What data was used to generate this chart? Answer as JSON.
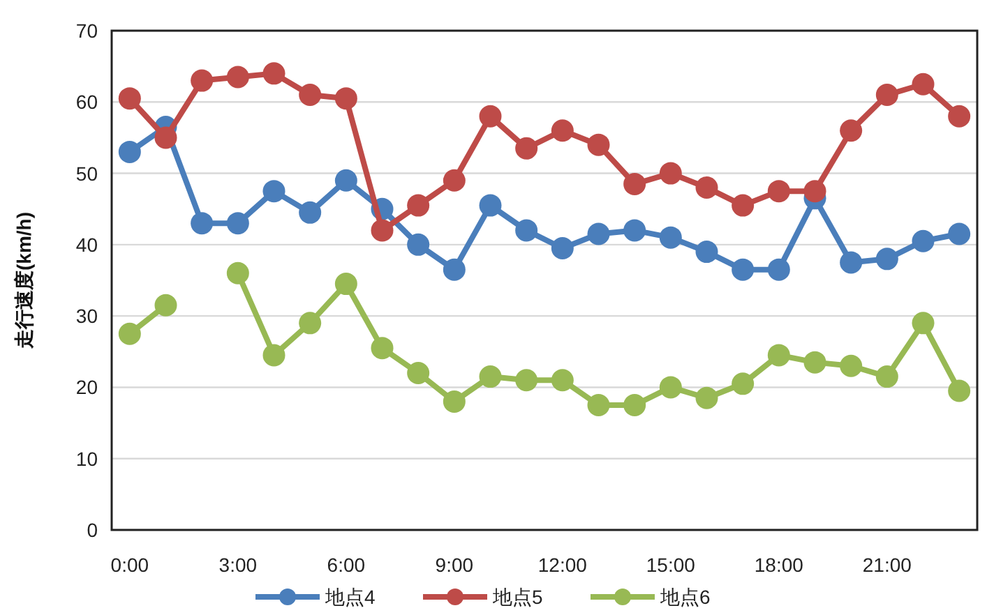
{
  "chart_data": {
    "type": "line",
    "ylabel": "走行速度(km/h)",
    "x": [
      0,
      1,
      2,
      3,
      4,
      5,
      6,
      7,
      8,
      9,
      10,
      11,
      12,
      13,
      14,
      15,
      16,
      17,
      18,
      19,
      20,
      21,
      22,
      23
    ],
    "xlim": [
      -0.5,
      23.5
    ],
    "xticks": [
      {
        "value": 0,
        "label": "0:00"
      },
      {
        "value": 3,
        "label": "3:00"
      },
      {
        "value": 6,
        "label": "6:00"
      },
      {
        "value": 9,
        "label": "9:00"
      },
      {
        "value": 12,
        "label": "12:00"
      },
      {
        "value": 15,
        "label": "15:00"
      },
      {
        "value": 18,
        "label": "18:00"
      },
      {
        "value": 21,
        "label": "21:00"
      }
    ],
    "ylim": [
      0,
      70
    ],
    "yticks": [
      0,
      10,
      20,
      30,
      40,
      50,
      60,
      70
    ],
    "grid": "y",
    "legend": "bottom",
    "marker": "circle",
    "line_style": "solid",
    "series": [
      {
        "name": "地点4",
        "color": "#4a7ebb",
        "values": [
          53,
          56.5,
          43,
          43,
          47.5,
          44.5,
          49,
          45,
          40,
          36.5,
          45.5,
          42,
          39.5,
          41.5,
          42,
          41,
          39,
          36.5,
          36.5,
          46.5,
          37.5,
          38,
          40.5,
          41.5
        ]
      },
      {
        "name": "地点5",
        "color": "#be4b48",
        "values": [
          60.5,
          55,
          63,
          63.5,
          64,
          61,
          60.5,
          42,
          45.5,
          49,
          58,
          53.5,
          56,
          54,
          48.5,
          50,
          48,
          45.5,
          47.5,
          47.5,
          56,
          61,
          62.5,
          58
        ]
      },
      {
        "name": "地点6",
        "color": "#98b954",
        "values": [
          27.5,
          31.5,
          null,
          36,
          24.5,
          29,
          34.5,
          25.5,
          22,
          18,
          21.5,
          21,
          21,
          17.5,
          17.5,
          20,
          18.5,
          20.5,
          24.5,
          23.5,
          23,
          21.5,
          29,
          19.5
        ]
      }
    ]
  }
}
